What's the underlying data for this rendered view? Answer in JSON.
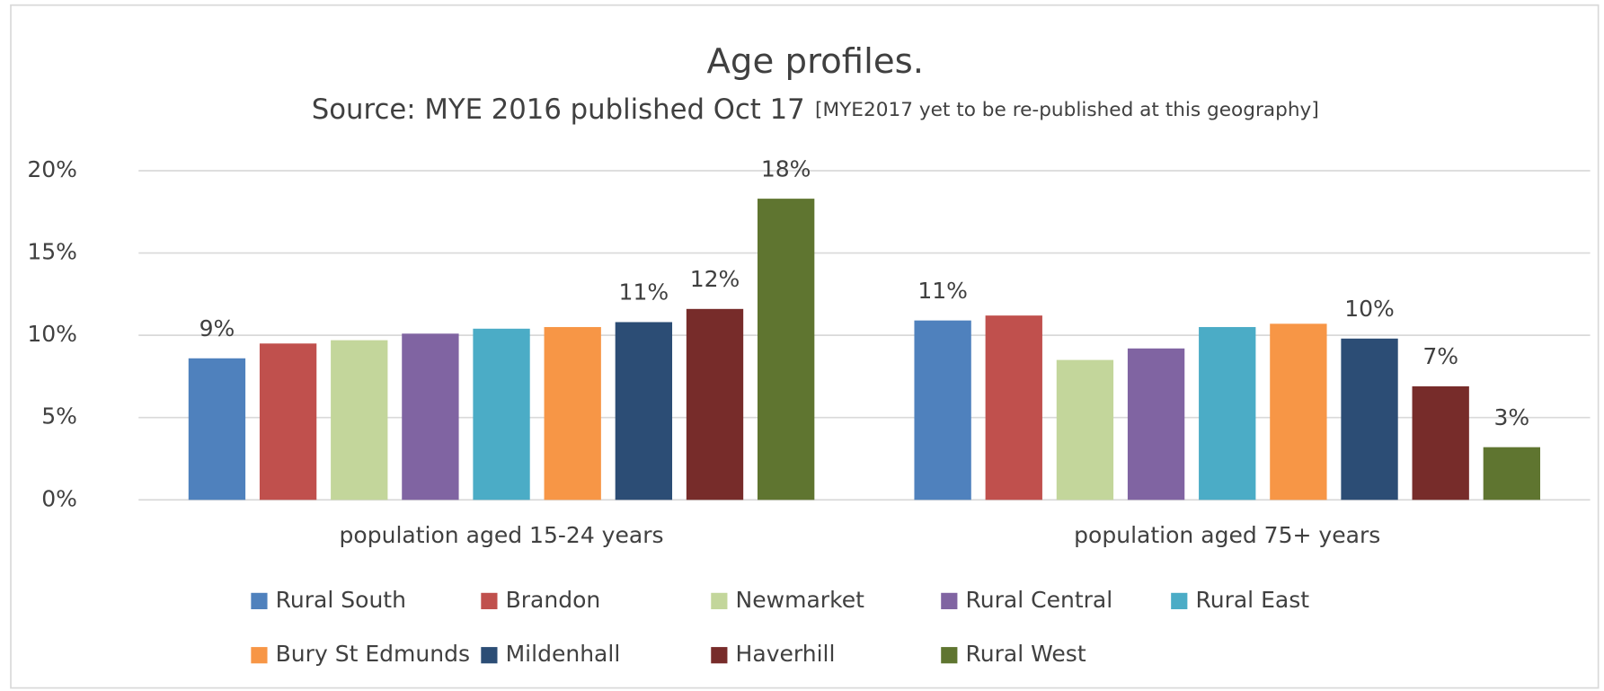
{
  "chart_data": {
    "type": "bar",
    "title": "Age profiles.",
    "subtitle": "Source: MYE 2016 published Oct 17",
    "note": "[MYE2017 yet to be re-published at this geography]",
    "categories": [
      "population aged 15-24 years",
      "population aged 75+ years"
    ],
    "ylim": [
      0,
      20
    ],
    "yticks": [
      {
        "value": 0,
        "label": "0%"
      },
      {
        "value": 5,
        "label": "5%"
      },
      {
        "value": 10,
        "label": "10%"
      },
      {
        "value": 15,
        "label": "15%"
      },
      {
        "value": 20,
        "label": "20%"
      }
    ],
    "grid": true,
    "legend": "bottom",
    "series": [
      {
        "name": "Rural South",
        "color": "#4f81bd",
        "values": [
          8.6,
          10.9
        ],
        "value_labels": [
          "9%",
          "11%"
        ]
      },
      {
        "name": "Brandon",
        "color": "#c0504d",
        "values": [
          9.5,
          11.2
        ]
      },
      {
        "name": "Newmarket",
        "color": "#c3d69b",
        "values": [
          9.7,
          8.5
        ]
      },
      {
        "name": "Rural Central",
        "color": "#8064a2",
        "values": [
          10.1,
          9.2
        ]
      },
      {
        "name": "Rural East",
        "color": "#4bacc6",
        "values": [
          10.4,
          10.5
        ]
      },
      {
        "name": "Bury St Edmunds",
        "color": "#f79646",
        "values": [
          10.5,
          10.7
        ]
      },
      {
        "name": "Mildenhall",
        "color": "#2c4d75",
        "values": [
          10.8,
          9.8
        ],
        "value_labels": [
          "11%",
          "10%"
        ]
      },
      {
        "name": "Haverhill",
        "color": "#772c2a",
        "values": [
          11.6,
          6.9
        ],
        "value_labels": [
          "12%",
          "7%"
        ]
      },
      {
        "name": "Rural West",
        "color": "#5f7530",
        "values": [
          18.3,
          3.2
        ],
        "value_labels": [
          "18%",
          "3%"
        ]
      }
    ]
  }
}
